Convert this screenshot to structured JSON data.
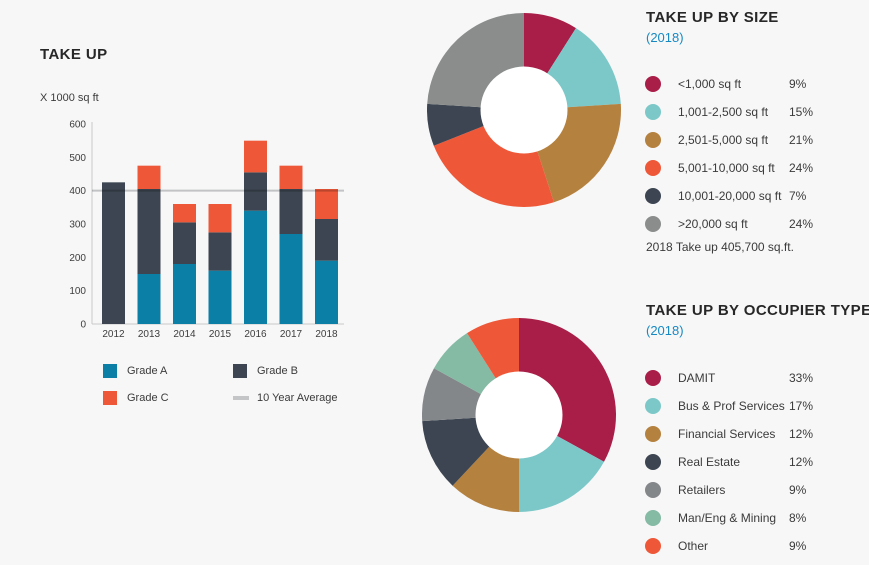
{
  "colors": {
    "background": "#F7F7F8",
    "title_text": "#272727",
    "body_text": "#3B3B3B",
    "accent_blue": "#1789C2",
    "donut_hole": "#FFFFFF"
  },
  "chart_data": [
    {
      "type": "bar",
      "title": "TAKE UP",
      "ylabel": "X 1000 sq ft",
      "categories": [
        "2012",
        "2013",
        "2014",
        "2015",
        "2016",
        "2017",
        "2018"
      ],
      "series": [
        {
          "name": "Grade A",
          "color": "#0C7FA6",
          "values": [
            0,
            150,
            180,
            160,
            340,
            270,
            190
          ]
        },
        {
          "name": "Grade B",
          "color": "#3C4551",
          "values": [
            425,
            255,
            125,
            115,
            115,
            135,
            125
          ]
        },
        {
          "name": "Grade C",
          "color": "#EE5838",
          "values": [
            0,
            70,
            55,
            85,
            95,
            70,
            90
          ]
        }
      ],
      "average_line": {
        "label": "10 Year Average",
        "value": 400,
        "color": "#C9CACA"
      },
      "ylim": [
        0,
        600
      ],
      "ytick_step": 100,
      "grid": false,
      "legend_position": "bottom"
    },
    {
      "type": "pie",
      "subtype": "donut",
      "title": "TAKE UP BY SIZE",
      "subtitle": "(2018)",
      "slices": [
        {
          "label": "<1,000 sq ft",
          "value": 9,
          "pct_label": "9%",
          "color": "#A91E48"
        },
        {
          "label": "1,001-2,500 sq ft",
          "value": 15,
          "pct_label": "15%",
          "color": "#7CC8C8"
        },
        {
          "label": "2,501-5,000 sq ft",
          "value": 21,
          "pct_label": "21%",
          "color": "#B5813E"
        },
        {
          "label": "5,001-10,000 sq ft",
          "value": 24,
          "pct_label": "24%",
          "color": "#EE5838"
        },
        {
          "label": "10,001-20,000 sq ft",
          "value": 7,
          "pct_label": "7%",
          "color": "#3C4551"
        },
        {
          "label": ">20,000 sq ft",
          "value": 24,
          "pct_label": "24%",
          "color": "#8A8D8C"
        }
      ],
      "note": "2018 Take up 405,700 sq.ft.",
      "legend_position": "right"
    },
    {
      "type": "pie",
      "subtype": "donut",
      "title": "TAKE UP BY OCCUPIER TYPE",
      "subtitle": "(2018)",
      "slices": [
        {
          "label": "DAMIT",
          "value": 33,
          "pct_label": "33%",
          "color": "#A91E48"
        },
        {
          "label": "Bus & Prof Services",
          "value": 17,
          "pct_label": "17%",
          "color": "#7CC8C8"
        },
        {
          "label": "Financial Services",
          "value": 12,
          "pct_label": "12%",
          "color": "#B5813E"
        },
        {
          "label": "Real Estate",
          "value": 12,
          "pct_label": "12%",
          "color": "#3C4551"
        },
        {
          "label": "Retailers",
          "value": 9,
          "pct_label": "9%",
          "color": "#84878A"
        },
        {
          "label": "Man/Eng & Mining",
          "value": 8,
          "pct_label": "8%",
          "color": "#85BAA4"
        },
        {
          "label": "Other",
          "value": 9,
          "pct_label": "9%",
          "color": "#EE5838"
        }
      ],
      "legend_position": "right"
    }
  ]
}
